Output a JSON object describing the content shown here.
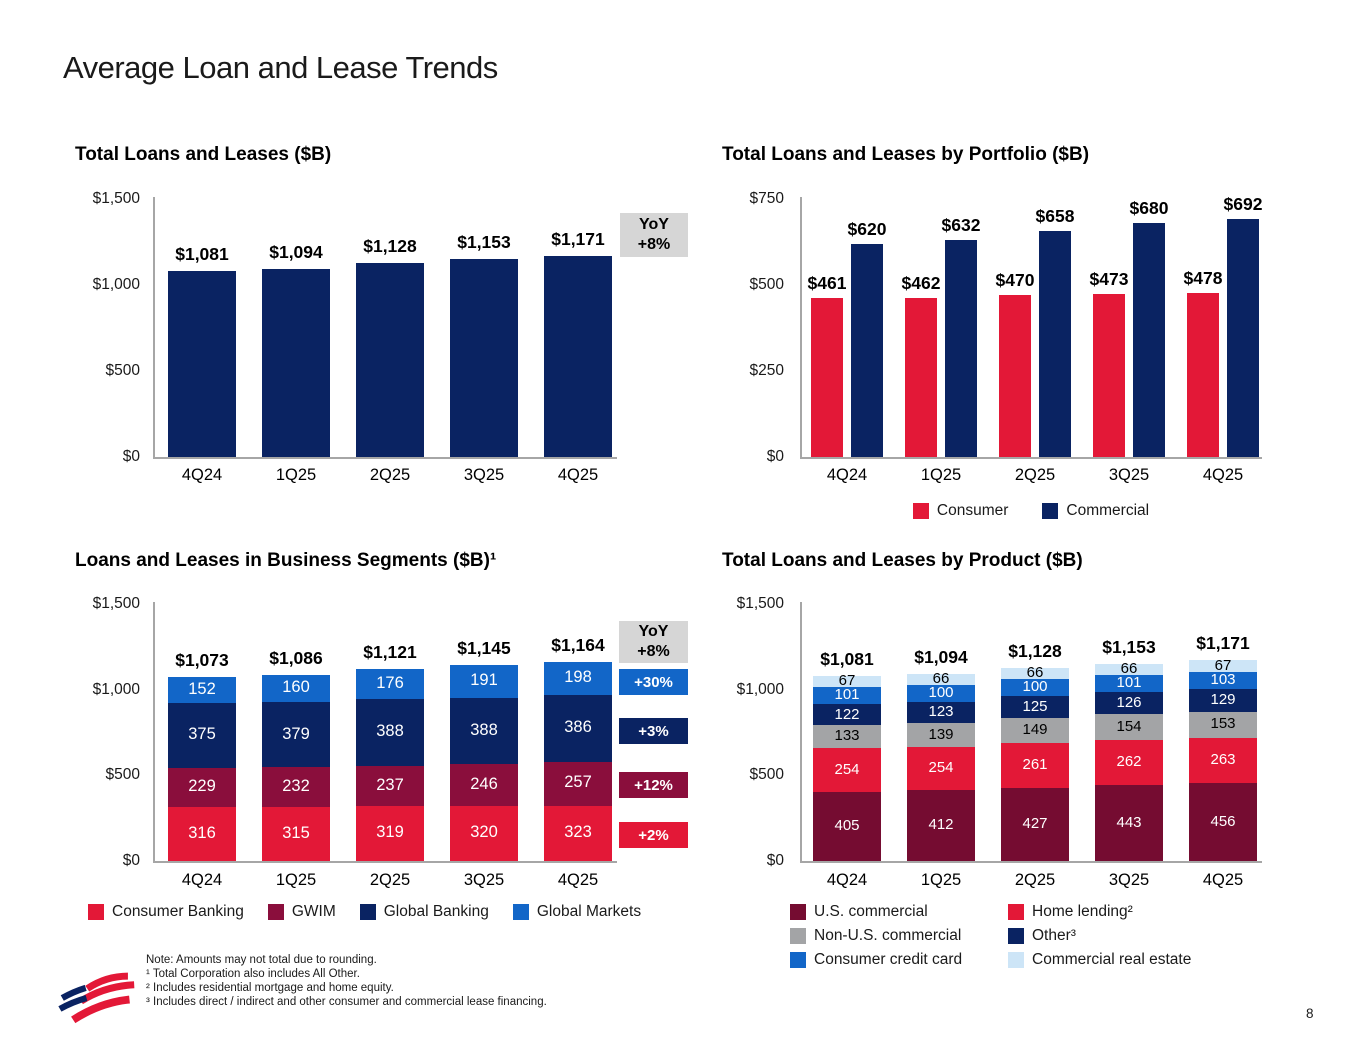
{
  "page": {
    "title": "Average Loan and Lease Trends",
    "page_number": "8",
    "logo_name": "bank-of-america-flag-logo",
    "footnotes": [
      "Note: Amounts may not total due to rounding.",
      "¹ Total Corporation also includes All Other.",
      "² Includes residential mortgage and home equity.",
      "³ Includes direct / indirect and other consumer and commercial lease financing."
    ]
  },
  "colors": {
    "navy": "#0A2362",
    "red": "#E31837",
    "burgundy": "#750C31",
    "burgundy_light": "#8A0E3C",
    "bright_blue": "#1266C8",
    "pale_blue": "#CDE5F7",
    "gray": "#A3A4A6",
    "yoy_box_gray": "#D6D6D6",
    "axis_gray": "#A6A6A6"
  },
  "chart_data": [
    {
      "id": "total",
      "type": "bar",
      "title": "Total Loans and Leases ($B)",
      "categories": [
        "4Q24",
        "1Q25",
        "2Q25",
        "3Q25",
        "4Q25"
      ],
      "values": [
        1081,
        1094,
        1128,
        1153,
        1171
      ],
      "value_labels": [
        "$1,081",
        "$1,094",
        "$1,128",
        "$1,153",
        "$1,171"
      ],
      "ylim": [
        0,
        1500
      ],
      "ytick_labels": [
        "$1,500",
        "$1,000",
        "$500",
        "$0"
      ],
      "bar_color_key": "navy",
      "grid": false,
      "yoy_box": {
        "title": "YoY",
        "value": "+8%"
      }
    },
    {
      "id": "portfolio",
      "type": "grouped_bar",
      "title": "Total Loans and Leases by Portfolio ($B)",
      "categories": [
        "4Q24",
        "1Q25",
        "2Q25",
        "3Q25",
        "4Q25"
      ],
      "series": [
        {
          "name": "Consumer",
          "color_key": "red",
          "values": [
            461,
            462,
            470,
            473,
            478
          ],
          "value_labels": [
            "$461",
            "$462",
            "$470",
            "$473",
            "$478"
          ]
        },
        {
          "name": "Commercial",
          "color_key": "navy",
          "values": [
            620,
            632,
            658,
            680,
            692
          ],
          "value_labels": [
            "$620",
            "$632",
            "$658",
            "$680",
            "$692"
          ]
        }
      ],
      "ylim": [
        0,
        750
      ],
      "ytick_labels": [
        "$750",
        "$500",
        "$250",
        "$0"
      ],
      "grid": false,
      "legend": [
        {
          "label": "Consumer",
          "color_key": "red"
        },
        {
          "label": "Commercial",
          "color_key": "navy"
        }
      ],
      "legend_position": "bottom-center"
    },
    {
      "id": "segments",
      "type": "stacked_bar",
      "title": "Loans and Leases in Business Segments ($B)¹",
      "categories": [
        "4Q24",
        "1Q25",
        "2Q25",
        "3Q25",
        "4Q25"
      ],
      "totals": [
        1073,
        1086,
        1121,
        1145,
        1164
      ],
      "total_labels": [
        "$1,073",
        "$1,086",
        "$1,121",
        "$1,145",
        "$1,164"
      ],
      "series_bottom_up": [
        {
          "name": "Consumer Banking",
          "color_key": "red",
          "text_color": "#ffffff",
          "values": [
            316,
            315,
            319,
            320,
            323
          ],
          "yoy": "+2%"
        },
        {
          "name": "GWIM",
          "color_key": "burgundy_light",
          "text_color": "#ffffff",
          "values": [
            229,
            232,
            237,
            246,
            257
          ],
          "yoy": "+12%"
        },
        {
          "name": "Global Banking",
          "color_key": "navy",
          "text_color": "#ffffff",
          "values": [
            375,
            379,
            388,
            388,
            386
          ],
          "yoy": "+3%"
        },
        {
          "name": "Global Markets",
          "color_key": "bright_blue",
          "text_color": "#ffffff",
          "values": [
            152,
            160,
            176,
            191,
            198
          ],
          "yoy": "+30%"
        }
      ],
      "ylim": [
        0,
        1500
      ],
      "ytick_labels": [
        "$1,500",
        "$1,000",
        "$500",
        "$0"
      ],
      "grid": false,
      "yoy_box": {
        "title": "YoY",
        "value": "+8%"
      },
      "legend": [
        {
          "label": "Consumer Banking",
          "color_key": "red"
        },
        {
          "label": "GWIM",
          "color_key": "burgundy_light"
        },
        {
          "label": "Global Banking",
          "color_key": "navy"
        },
        {
          "label": "Global Markets",
          "color_key": "bright_blue"
        }
      ],
      "legend_position": "bottom-left"
    },
    {
      "id": "product",
      "type": "stacked_bar",
      "title": "Total Loans and Leases by Product ($B)",
      "categories": [
        "4Q24",
        "1Q25",
        "2Q25",
        "3Q25",
        "4Q25"
      ],
      "totals": [
        1081,
        1094,
        1128,
        1153,
        1171
      ],
      "total_labels": [
        "$1,081",
        "$1,094",
        "$1,128",
        "$1,153",
        "$1,171"
      ],
      "series_bottom_up": [
        {
          "name": "U.S. commercial",
          "color_key": "burgundy",
          "text_color": "#ffffff",
          "values": [
            405,
            412,
            427,
            443,
            456
          ]
        },
        {
          "name": "Home lending²",
          "color_key": "red",
          "text_color": "#ffffff",
          "values": [
            254,
            254,
            261,
            262,
            263
          ]
        },
        {
          "name": "Non-U.S. commercial",
          "color_key": "gray",
          "text_color": "#000000",
          "values": [
            133,
            139,
            149,
            154,
            153
          ]
        },
        {
          "name": "Other³",
          "color_key": "navy",
          "text_color": "#ffffff",
          "values": [
            122,
            123,
            125,
            126,
            129
          ]
        },
        {
          "name": "Consumer credit card",
          "color_key": "bright_blue",
          "text_color": "#ffffff",
          "values": [
            101,
            100,
            100,
            101,
            103
          ]
        },
        {
          "name": "Commercial real estate",
          "color_key": "pale_blue",
          "text_color": "#000000",
          "values": [
            67,
            66,
            66,
            66,
            67
          ]
        }
      ],
      "ylim": [
        0,
        1500
      ],
      "ytick_labels": [
        "$1,500",
        "$1,000",
        "$500",
        "$0"
      ],
      "grid": false,
      "legend": [
        {
          "label": "U.S. commercial",
          "color_key": "burgundy"
        },
        {
          "label": "Home lending²",
          "color_key": "red"
        },
        {
          "label": "Non-U.S. commercial",
          "color_key": "gray"
        },
        {
          "label": "Other³",
          "color_key": "navy"
        },
        {
          "label": "Consumer credit card",
          "color_key": "bright_blue"
        },
        {
          "label": "Commercial real estate",
          "color_key": "pale_blue"
        }
      ],
      "legend_position": "bottom-two-column"
    }
  ]
}
